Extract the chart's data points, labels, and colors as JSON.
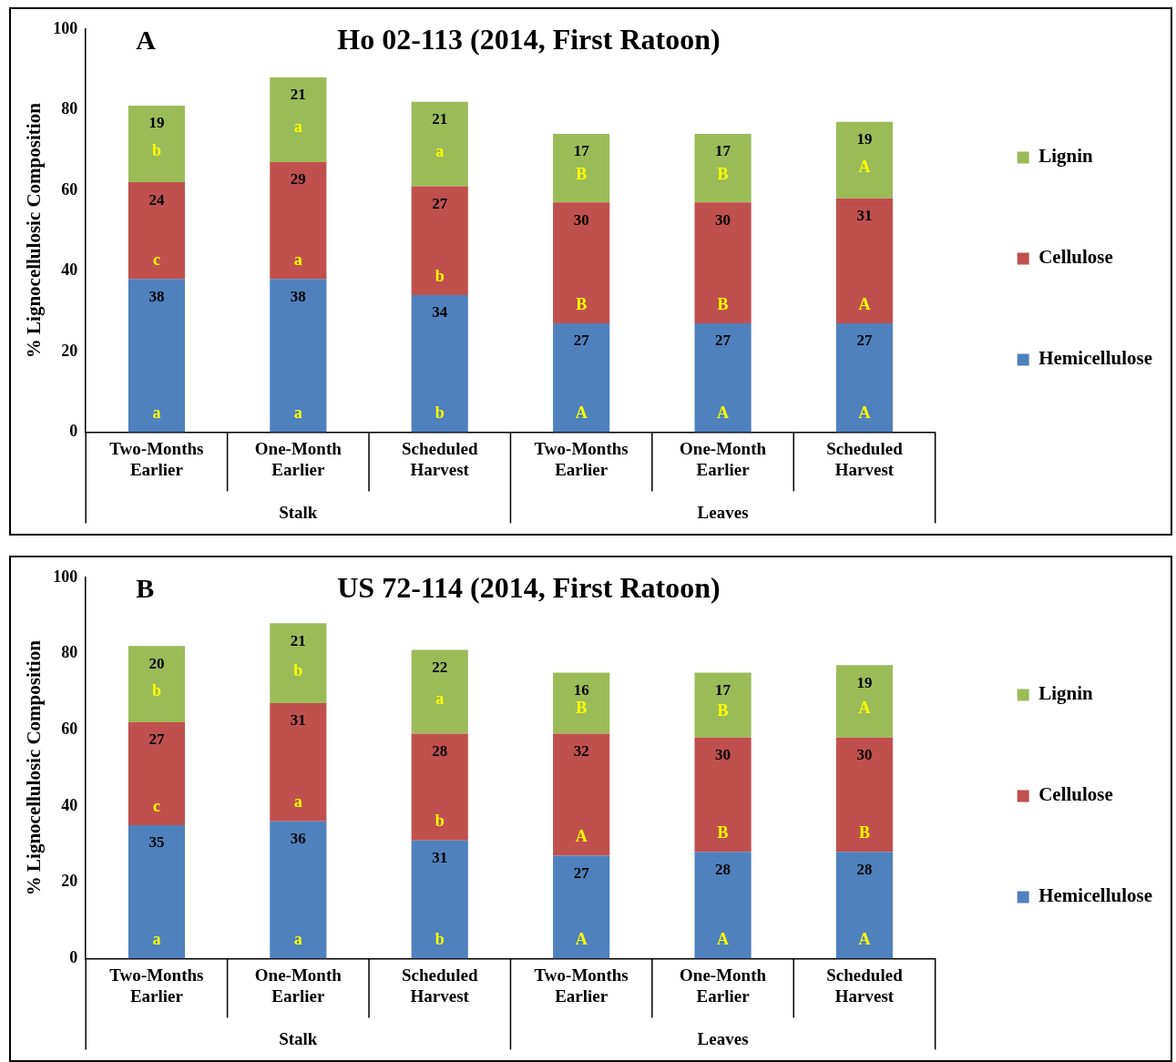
{
  "chart_data": [
    {
      "type": "bar",
      "stacked": true,
      "title": "Ho 02-113 (2014, First Ratoon)",
      "ylabel": "% Lignocellulosic Composition",
      "categories": [
        "Two-Months Earlier",
        "One-Month Earlier",
        "Scheduled Harvest",
        "Two-Months Earlier",
        "One-Month Earlier",
        "Scheduled Harvest"
      ],
      "series": [
        {
          "name": "Hemicellulose",
          "color": "#4f81bd",
          "values": [
            38,
            38,
            34,
            27,
            27,
            27
          ]
        },
        {
          "name": "Cellulose",
          "color": "#c0504d",
          "values": [
            24,
            29,
            27,
            30,
            30,
            31
          ]
        },
        {
          "name": "Lignin",
          "color": "#9bbb59",
          "values": [
            19,
            21,
            21,
            17,
            17,
            19
          ]
        }
      ],
      "ylim": [
        0,
        100
      ],
      "yticks": [
        0,
        20,
        40,
        60,
        80,
        100
      ],
      "grid": false,
      "legend": "right",
      "data_labels": true,
      "annotations": [
        "A",
        "Stalk",
        "Leaves",
        "a",
        "c",
        "b",
        "a",
        "a",
        "a",
        "b",
        "b",
        "a",
        "A",
        "B",
        "B",
        "A",
        "B",
        "B",
        "A",
        "A",
        "A"
      ]
    },
    {
      "type": "bar",
      "stacked": true,
      "title": "US 72-114 (2014, First Ratoon)",
      "ylabel": "% Lignocellulosic Composition",
      "categories": [
        "Two-Months Earlier",
        "One-Month Earlier",
        "Scheduled Harvest",
        "Two-Months Earlier",
        "One-Month Earlier",
        "Scheduled Harvest"
      ],
      "series": [
        {
          "name": "Hemicellulose",
          "color": "#4f81bd",
          "values": [
            35,
            36,
            31,
            27,
            28,
            28
          ]
        },
        {
          "name": "Cellulose",
          "color": "#c0504d",
          "values": [
            27,
            31,
            28,
            32,
            30,
            30
          ]
        },
        {
          "name": "Lignin",
          "color": "#9bbb59",
          "values": [
            20,
            21,
            22,
            16,
            17,
            19
          ]
        }
      ],
      "ylim": [
        0,
        100
      ],
      "yticks": [
        0,
        20,
        40,
        60,
        80,
        100
      ],
      "grid": false,
      "legend": "right",
      "data_labels": true,
      "annotations": [
        "B",
        "Stalk",
        "Leaves",
        "a",
        "c",
        "b",
        "a",
        "a",
        "b",
        "b",
        "b",
        "a",
        "A",
        "A",
        "B",
        "A",
        "B",
        "B",
        "A",
        "B",
        "A"
      ]
    }
  ]
}
